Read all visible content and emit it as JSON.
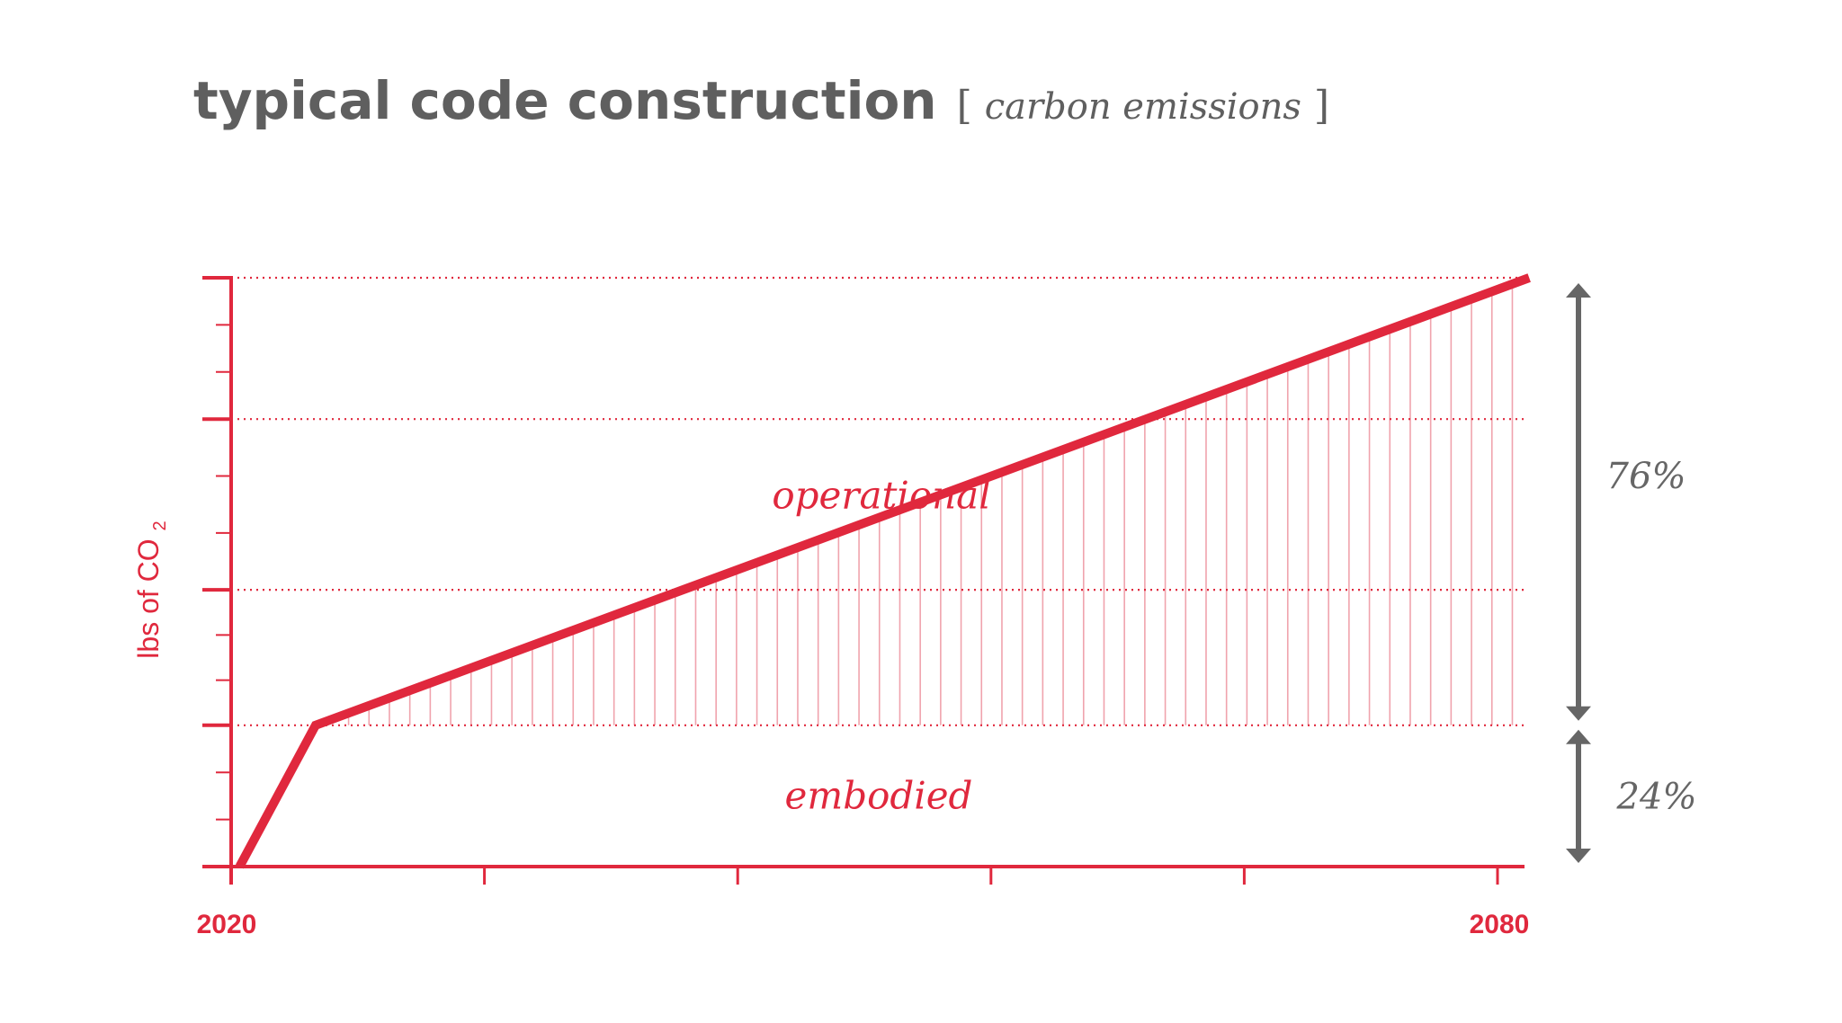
{
  "colors": {
    "accent": "#e0283d",
    "hatch": "#f0a3ad",
    "gray": "#666666",
    "title": "#5f5f5f"
  },
  "title": {
    "main": "typical code construction",
    "sub": "carbon emissions",
    "bracket_open": "[",
    "bracket_close": "]"
  },
  "chart_data": {
    "type": "line",
    "title": "typical code construction [ carbon emissions ]",
    "xlabel": "",
    "ylabel": "lbs of CO",
    "ylabel_subscript": "2",
    "x_tick_labels": [
      "2020",
      "2080"
    ],
    "xlim": [
      2020,
      2080
    ],
    "ylim": [
      0,
      100
    ],
    "x_major_ticks": [
      2020,
      2032,
      2044,
      2056,
      2068,
      2080
    ],
    "y_major_gridlines": [
      24,
      47,
      76,
      100
    ],
    "grid": "dotted horizontal",
    "series": [
      {
        "x": [
          2020.4,
          2024,
          2081.5
        ],
        "y": [
          0,
          24,
          100
        ]
      }
    ],
    "regions": [
      {
        "label": "embodied",
        "percent_label": "24%",
        "from": 0,
        "to": 24
      },
      {
        "label": "operational",
        "percent_label": "76%",
        "from": 24,
        "to": 100
      }
    ]
  }
}
